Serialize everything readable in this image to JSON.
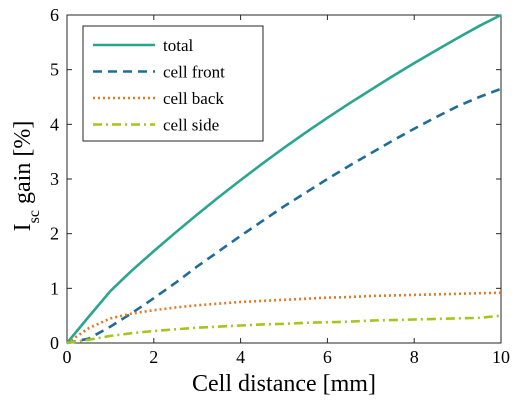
{
  "chart_data": {
    "type": "line",
    "xlabel": "Cell distance [mm]",
    "ylabel": "I",
    "ylabel_subscript": "sc",
    "ylabel_suffix": " gain [%]",
    "xlim": [
      0,
      10
    ],
    "ylim": [
      0,
      6
    ],
    "xticks": [
      "0",
      "2",
      "4",
      "6",
      "8",
      "10"
    ],
    "yticks": [
      "0",
      "1",
      "2",
      "3",
      "4",
      "5",
      "6"
    ],
    "grid": false,
    "legend_position": "top-left",
    "x": [
      0,
      0.5,
      1,
      1.5,
      2,
      2.5,
      3,
      3.5,
      4,
      4.5,
      5,
      5.5,
      6,
      6.5,
      7,
      7.5,
      8,
      8.5,
      9,
      9.5,
      10
    ],
    "series": [
      {
        "name": "total",
        "color": "#2aa58f",
        "dash": "solid",
        "values": [
          0,
          0.48,
          0.95,
          1.33,
          1.68,
          2.02,
          2.35,
          2.67,
          2.98,
          3.28,
          3.57,
          3.85,
          4.12,
          4.38,
          4.63,
          4.88,
          5.12,
          5.35,
          5.58,
          5.8,
          6.0
        ]
      },
      {
        "name": "cell front",
        "color": "#1f6d96",
        "dash": "dashed",
        "values": [
          0,
          0.08,
          0.3,
          0.55,
          0.82,
          1.1,
          1.4,
          1.68,
          1.96,
          2.23,
          2.5,
          2.75,
          3.0,
          3.24,
          3.47,
          3.7,
          3.92,
          4.13,
          4.33,
          4.5,
          4.65
        ]
      },
      {
        "name": "cell back",
        "color": "#e07a24",
        "dash": "dotted",
        "values": [
          0,
          0.27,
          0.45,
          0.54,
          0.6,
          0.65,
          0.69,
          0.72,
          0.75,
          0.77,
          0.79,
          0.81,
          0.83,
          0.84,
          0.86,
          0.87,
          0.88,
          0.89,
          0.9,
          0.91,
          0.92
        ]
      },
      {
        "name": "cell side",
        "color": "#a3c51c",
        "dash": "dashdot",
        "values": [
          0,
          0.06,
          0.13,
          0.18,
          0.22,
          0.25,
          0.28,
          0.3,
          0.32,
          0.34,
          0.35,
          0.37,
          0.38,
          0.39,
          0.41,
          0.42,
          0.43,
          0.44,
          0.45,
          0.46,
          0.5
        ]
      }
    ]
  }
}
